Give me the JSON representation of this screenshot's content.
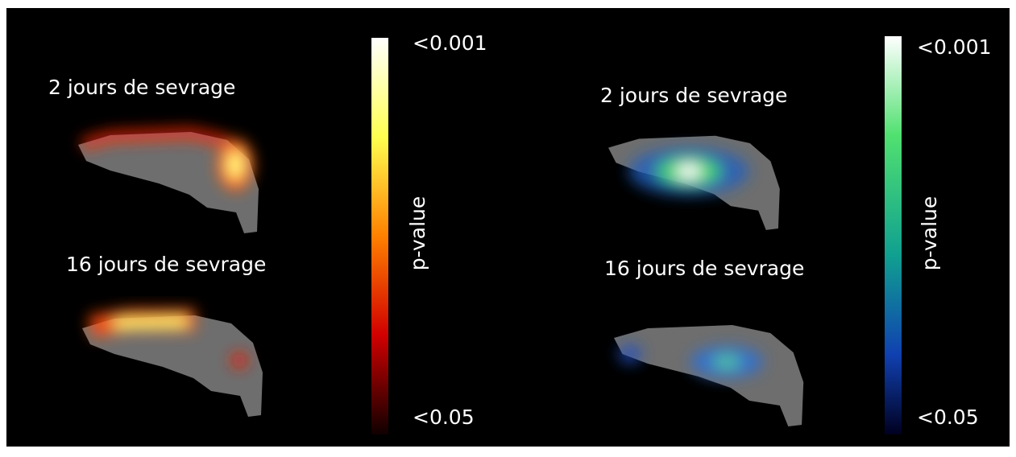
{
  "panels": [
    {
      "images": [
        {
          "label": "2 jours de sevrage"
        },
        {
          "label": "16 jours de sevrage"
        }
      ],
      "colorbar": {
        "top_label": "<0.001",
        "bottom_label": "<0.05",
        "axis_label": "p-value"
      }
    },
    {
      "images": [
        {
          "label": "2 jours de sevrage"
        },
        {
          "label": "16 jours de sevrage"
        }
      ],
      "colorbar": {
        "top_label": "<0.001",
        "bottom_label": "<0.05",
        "axis_label": "p-value"
      }
    }
  ]
}
